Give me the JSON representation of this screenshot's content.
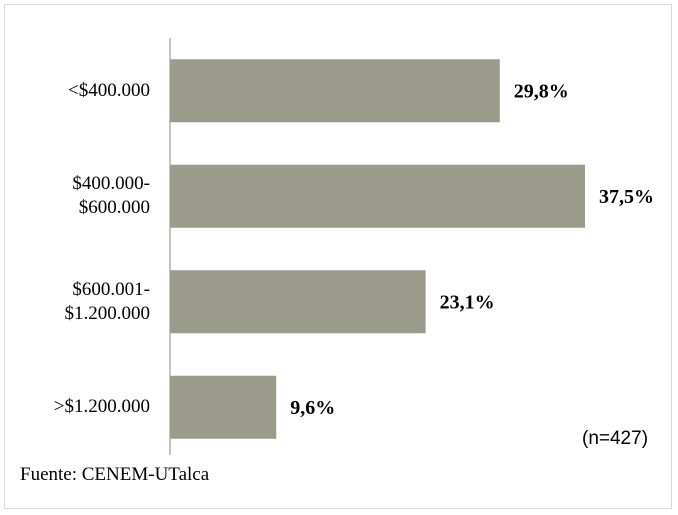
{
  "chart_data": {
    "type": "bar",
    "orientation": "horizontal",
    "categories": [
      "<$400.000",
      "$400.000-\n$600.000",
      "$600.001-\n$1.200.000",
      ">$1.200.000"
    ],
    "values": [
      29.8,
      37.5,
      23.1,
      9.6
    ],
    "value_labels": [
      "29,8%",
      "37,5%",
      "23,1%",
      "9,6%"
    ],
    "color": "#9a9b8b",
    "annotations": [
      "(n=427)",
      "Fuente: CENEM-UTalca"
    ]
  }
}
